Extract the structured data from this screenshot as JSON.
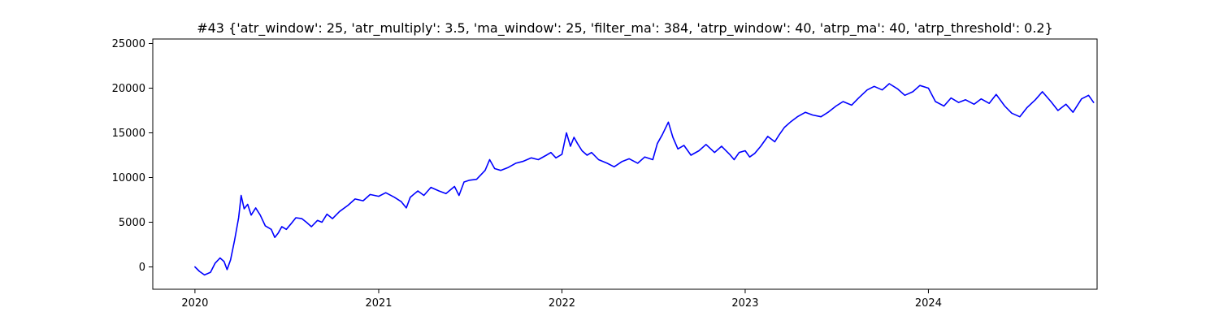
{
  "chart_data": {
    "type": "line",
    "title": "#43 {'atr_window': 25, 'atr_multiply': 3.5, 'ma_window': 25, 'filter_ma': 384, 'atrp_window': 40, 'atrp_ma': 40, 'atrp_threshold': 0.2}",
    "xlabel": "",
    "ylabel": "",
    "x_axis_type": "date",
    "xlim": [
      "2019-10-09",
      "2024-12-02"
    ],
    "ylim": [
      -2500,
      25500
    ],
    "x_ticks": [
      {
        "date": "2020-01-01",
        "label": "2020"
      },
      {
        "date": "2021-01-01",
        "label": "2021"
      },
      {
        "date": "2022-01-01",
        "label": "2022"
      },
      {
        "date": "2023-01-01",
        "label": "2023"
      },
      {
        "date": "2024-01-01",
        "label": "2024"
      }
    ],
    "y_ticks": [
      {
        "value": 0,
        "label": "0"
      },
      {
        "value": 5000,
        "label": "5000"
      },
      {
        "value": 10000,
        "label": "10000"
      },
      {
        "value": 15000,
        "label": "15000"
      },
      {
        "value": 20000,
        "label": "20000"
      },
      {
        "value": 25000,
        "label": "25000"
      }
    ],
    "grid": false,
    "series": [
      {
        "color": "#0000ff",
        "points": [
          [
            "2020-01-01",
            0
          ],
          [
            "2020-01-10",
            -500
          ],
          [
            "2020-01-20",
            -900
          ],
          [
            "2020-02-01",
            -600
          ],
          [
            "2020-02-10",
            400
          ],
          [
            "2020-02-20",
            1000
          ],
          [
            "2020-02-28",
            600
          ],
          [
            "2020-03-05",
            -300
          ],
          [
            "2020-03-12",
            800
          ],
          [
            "2020-03-20",
            3000
          ],
          [
            "2020-03-28",
            5500
          ],
          [
            "2020-04-02",
            8000
          ],
          [
            "2020-04-08",
            6500
          ],
          [
            "2020-04-15",
            7000
          ],
          [
            "2020-04-22",
            5800
          ],
          [
            "2020-05-01",
            6600
          ],
          [
            "2020-05-10",
            5800
          ],
          [
            "2020-05-20",
            4600
          ],
          [
            "2020-06-01",
            4200
          ],
          [
            "2020-06-08",
            3300
          ],
          [
            "2020-06-15",
            3800
          ],
          [
            "2020-06-22",
            4500
          ],
          [
            "2020-07-01",
            4200
          ],
          [
            "2020-07-10",
            4800
          ],
          [
            "2020-07-20",
            5500
          ],
          [
            "2020-08-01",
            5400
          ],
          [
            "2020-08-10",
            5000
          ],
          [
            "2020-08-20",
            4500
          ],
          [
            "2020-09-01",
            5200
          ],
          [
            "2020-09-10",
            5000
          ],
          [
            "2020-09-20",
            5900
          ],
          [
            "2020-10-01",
            5400
          ],
          [
            "2020-10-15",
            6200
          ],
          [
            "2020-11-01",
            6900
          ],
          [
            "2020-11-15",
            7600
          ],
          [
            "2020-12-01",
            7400
          ],
          [
            "2020-12-15",
            8100
          ],
          [
            "2021-01-01",
            7900
          ],
          [
            "2021-01-15",
            8300
          ],
          [
            "2021-02-01",
            7800
          ],
          [
            "2021-02-15",
            7300
          ],
          [
            "2021-02-25",
            6600
          ],
          [
            "2021-03-05",
            7800
          ],
          [
            "2021-03-20",
            8500
          ],
          [
            "2021-04-01",
            8000
          ],
          [
            "2021-04-15",
            8900
          ],
          [
            "2021-05-01",
            8500
          ],
          [
            "2021-05-15",
            8200
          ],
          [
            "2021-06-01",
            9000
          ],
          [
            "2021-06-10",
            8000
          ],
          [
            "2021-06-20",
            9500
          ],
          [
            "2021-07-01",
            9700
          ],
          [
            "2021-07-15",
            9800
          ],
          [
            "2021-08-01",
            10800
          ],
          [
            "2021-08-10",
            12000
          ],
          [
            "2021-08-20",
            11000
          ],
          [
            "2021-09-01",
            10800
          ],
          [
            "2021-09-15",
            11100
          ],
          [
            "2021-10-01",
            11600
          ],
          [
            "2021-10-15",
            11800
          ],
          [
            "2021-11-01",
            12200
          ],
          [
            "2021-11-15",
            12000
          ],
          [
            "2021-12-01",
            12500
          ],
          [
            "2021-12-10",
            12800
          ],
          [
            "2021-12-20",
            12200
          ],
          [
            "2022-01-01",
            12600
          ],
          [
            "2022-01-10",
            15000
          ],
          [
            "2022-01-18",
            13500
          ],
          [
            "2022-01-25",
            14500
          ],
          [
            "2022-02-01",
            13800
          ],
          [
            "2022-02-10",
            13000
          ],
          [
            "2022-02-20",
            12500
          ],
          [
            "2022-03-01",
            12800
          ],
          [
            "2022-03-15",
            12000
          ],
          [
            "2022-04-01",
            11600
          ],
          [
            "2022-04-15",
            11200
          ],
          [
            "2022-05-01",
            11800
          ],
          [
            "2022-05-15",
            12100
          ],
          [
            "2022-06-01",
            11600
          ],
          [
            "2022-06-15",
            12300
          ],
          [
            "2022-07-01",
            12000
          ],
          [
            "2022-07-10",
            13800
          ],
          [
            "2022-07-20",
            14800
          ],
          [
            "2022-08-01",
            16200
          ],
          [
            "2022-08-10",
            14500
          ],
          [
            "2022-08-20",
            13200
          ],
          [
            "2022-09-01",
            13600
          ],
          [
            "2022-09-15",
            12500
          ],
          [
            "2022-10-01",
            13000
          ],
          [
            "2022-10-15",
            13700
          ],
          [
            "2022-11-01",
            12800
          ],
          [
            "2022-11-15",
            13500
          ],
          [
            "2022-12-01",
            12600
          ],
          [
            "2022-12-10",
            12000
          ],
          [
            "2022-12-20",
            12800
          ],
          [
            "2023-01-01",
            13000
          ],
          [
            "2023-01-10",
            12300
          ],
          [
            "2023-01-20",
            12700
          ],
          [
            "2023-02-01",
            13500
          ],
          [
            "2023-02-15",
            14600
          ],
          [
            "2023-03-01",
            14000
          ],
          [
            "2023-03-10",
            14800
          ],
          [
            "2023-03-20",
            15600
          ],
          [
            "2023-04-01",
            16200
          ],
          [
            "2023-04-15",
            16800
          ],
          [
            "2023-05-01",
            17300
          ],
          [
            "2023-05-15",
            17000
          ],
          [
            "2023-06-01",
            16800
          ],
          [
            "2023-06-15",
            17300
          ],
          [
            "2023-07-01",
            18000
          ],
          [
            "2023-07-15",
            18500
          ],
          [
            "2023-08-01",
            18100
          ],
          [
            "2023-08-15",
            18900
          ],
          [
            "2023-09-01",
            19800
          ],
          [
            "2023-09-15",
            20200
          ],
          [
            "2023-10-01",
            19800
          ],
          [
            "2023-10-15",
            20500
          ],
          [
            "2023-11-01",
            19900
          ],
          [
            "2023-11-15",
            19200
          ],
          [
            "2023-12-01",
            19600
          ],
          [
            "2023-12-15",
            20300
          ],
          [
            "2024-01-01",
            20000
          ],
          [
            "2024-01-15",
            18500
          ],
          [
            "2024-02-01",
            18000
          ],
          [
            "2024-02-15",
            18900
          ],
          [
            "2024-03-01",
            18400
          ],
          [
            "2024-03-15",
            18700
          ],
          [
            "2024-04-01",
            18200
          ],
          [
            "2024-04-15",
            18800
          ],
          [
            "2024-05-01",
            18300
          ],
          [
            "2024-05-15",
            19300
          ],
          [
            "2024-06-01",
            18000
          ],
          [
            "2024-06-15",
            17200
          ],
          [
            "2024-07-01",
            16800
          ],
          [
            "2024-07-15",
            17800
          ],
          [
            "2024-08-01",
            18700
          ],
          [
            "2024-08-15",
            19600
          ],
          [
            "2024-09-01",
            18500
          ],
          [
            "2024-09-15",
            17500
          ],
          [
            "2024-10-01",
            18200
          ],
          [
            "2024-10-15",
            17300
          ],
          [
            "2024-11-01",
            18800
          ],
          [
            "2024-11-15",
            19200
          ],
          [
            "2024-11-25",
            18400
          ]
        ]
      }
    ]
  }
}
